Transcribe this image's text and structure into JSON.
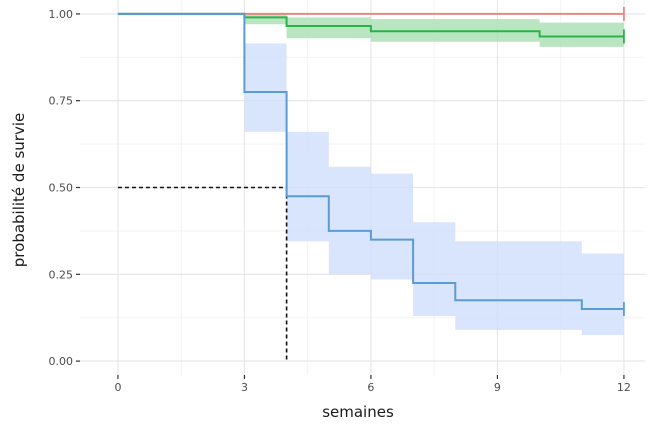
{
  "chart_data": {
    "type": "line",
    "xlabel": "semaines",
    "ylabel": "probabilité de survie",
    "xlim": [
      -0.9,
      12.5
    ],
    "ylim": [
      -0.04,
      1.04
    ],
    "xticks": [
      0,
      3,
      6,
      9,
      12
    ],
    "yticks": [
      0,
      0.25,
      0.5,
      0.75,
      1
    ],
    "xtick_labels": [
      "0",
      "3",
      "6",
      "9",
      "12"
    ],
    "ytick_labels": [
      "0.00",
      "0.25",
      "0.50",
      "0.75",
      "1.00"
    ],
    "grid": true,
    "legend": "none",
    "series": [
      {
        "color": "#e8877f",
        "band_color": "#f6c6c2",
        "steps": [
          [
            0,
            1.0
          ],
          [
            12,
            1.0
          ]
        ],
        "ci": []
      },
      {
        "color": "#2bb24c",
        "band_color": "#a8e0b2",
        "steps": [
          [
            0,
            1.0
          ],
          [
            3,
            0.99
          ],
          [
            4,
            0.965
          ],
          [
            6,
            0.95
          ],
          [
            10,
            0.935
          ],
          [
            12,
            0.935
          ]
        ],
        "ci": [
          [
            0,
            1.0,
            1.0
          ],
          [
            3,
            0.97,
            1.0
          ],
          [
            4,
            0.93,
            0.99
          ],
          [
            6,
            0.92,
            0.985
          ],
          [
            10,
            0.905,
            0.975
          ],
          [
            12,
            0.905,
            0.975
          ]
        ]
      },
      {
        "color": "#5b9bd5",
        "band_color": "#cfdffb",
        "steps": [
          [
            0,
            1.0
          ],
          [
            3,
            0.775
          ],
          [
            4,
            0.475
          ],
          [
            5,
            0.375
          ],
          [
            6,
            0.35
          ],
          [
            7,
            0.225
          ],
          [
            8,
            0.175
          ],
          [
            11,
            0.15
          ],
          [
            12,
            0.15
          ]
        ],
        "ci": [
          [
            0,
            1.0,
            1.0
          ],
          [
            3,
            0.66,
            0.915
          ],
          [
            4,
            0.345,
            0.66
          ],
          [
            5,
            0.25,
            0.56
          ],
          [
            6,
            0.235,
            0.54
          ],
          [
            7,
            0.13,
            0.4
          ],
          [
            8,
            0.09,
            0.345
          ],
          [
            11,
            0.075,
            0.31
          ],
          [
            12,
            0.075,
            0.31
          ]
        ]
      }
    ],
    "median_reference": {
      "x": 4,
      "y": 0.5
    }
  }
}
